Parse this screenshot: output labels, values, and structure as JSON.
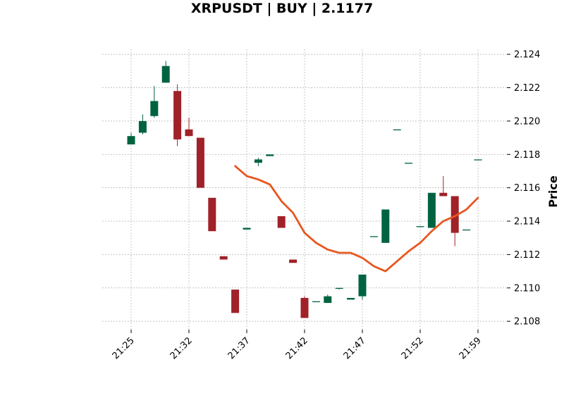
{
  "chart_data": {
    "type": "candlestick",
    "title": "XRPUSDT | BUY | 2.1177",
    "ylabel": "Price",
    "xlabel": "",
    "ylim": [
      2.1075,
      2.1243
    ],
    "y_ticks": [
      "2.108",
      "2.110",
      "2.112",
      "2.114",
      "2.116",
      "2.118",
      "2.120",
      "2.122",
      "2.124"
    ],
    "x_ticks": [
      {
        "label": "21:25",
        "index": 0
      },
      {
        "label": "21:32",
        "index": 5
      },
      {
        "label": "21:37",
        "index": 10
      },
      {
        "label": "21:42",
        "index": 15
      },
      {
        "label": "21:47",
        "index": 20
      },
      {
        "label": "21:52",
        "index": 25
      },
      {
        "label": "21:59",
        "index": 30
      }
    ],
    "colors": {
      "up": "#006340",
      "down": "#a02128",
      "ma": "#e8561e",
      "grid": "#b0b0b0"
    },
    "candles": [
      {
        "o": 2.1186,
        "h": 2.1193,
        "l": 2.1186,
        "c": 2.1191
      },
      {
        "o": 2.1193,
        "h": 2.1204,
        "l": 2.1192,
        "c": 2.12
      },
      {
        "o": 2.1203,
        "h": 2.1221,
        "l": 2.1202,
        "c": 2.1212
      },
      {
        "o": 2.1223,
        "h": 2.1236,
        "l": 2.1223,
        "c": 2.1233
      },
      {
        "o": 2.1218,
        "h": 2.1222,
        "l": 2.1185,
        "c": 2.1189
      },
      {
        "o": 2.1195,
        "h": 2.1202,
        "l": 2.1191,
        "c": 2.1191
      },
      {
        "o": 2.119,
        "h": 2.119,
        "l": 2.116,
        "c": 2.116
      },
      {
        "o": 2.1154,
        "h": 2.1154,
        "l": 2.1134,
        "c": 2.1134
      },
      {
        "o": 2.1119,
        "h": 2.1119,
        "l": 2.1117,
        "c": 2.1117
      },
      {
        "o": 2.1099,
        "h": 2.1099,
        "l": 2.1085,
        "c": 2.1085
      },
      {
        "o": 2.1135,
        "h": 2.1136,
        "l": 2.1135,
        "c": 2.1136
      },
      {
        "o": 2.1175,
        "h": 2.1178,
        "l": 2.1173,
        "c": 2.1177
      },
      {
        "o": 2.1179,
        "h": 2.118,
        "l": 2.1179,
        "c": 2.118
      },
      {
        "o": 2.1143,
        "h": 2.1143,
        "l": 2.1136,
        "c": 2.1136
      },
      {
        "o": 2.1117,
        "h": 2.1117,
        "l": 2.1115,
        "c": 2.1115
      },
      {
        "o": 2.1094,
        "h": 2.1095,
        "l": 2.1082,
        "c": 2.1082
      },
      {
        "o": 2.1092,
        "h": 2.1092,
        "l": 2.1092,
        "c": 2.1092
      },
      {
        "o": 2.1091,
        "h": 2.1096,
        "l": 2.1091,
        "c": 2.1095
      },
      {
        "o": 2.11,
        "h": 2.11,
        "l": 2.1099,
        "c": 2.11
      },
      {
        "o": 2.1093,
        "h": 2.1094,
        "l": 2.1093,
        "c": 2.1094
      },
      {
        "o": 2.1095,
        "h": 2.1108,
        "l": 2.1093,
        "c": 2.1108
      },
      {
        "o": 2.1131,
        "h": 2.1131,
        "l": 2.1131,
        "c": 2.1131
      },
      {
        "o": 2.1127,
        "h": 2.1147,
        "l": 2.1127,
        "c": 2.1147
      },
      {
        "o": 2.1195,
        "h": 2.1195,
        "l": 2.1195,
        "c": 2.1195
      },
      {
        "o": 2.1175,
        "h": 2.1175,
        "l": 2.1175,
        "c": 2.1175
      },
      {
        "o": 2.1137,
        "h": 2.1137,
        "l": 2.1137,
        "c": 2.1137
      },
      {
        "o": 2.1136,
        "h": 2.1157,
        "l": 2.1136,
        "c": 2.1157
      },
      {
        "o": 2.1157,
        "h": 2.1167,
        "l": 2.1155,
        "c": 2.1155
      },
      {
        "o": 2.1155,
        "h": 2.1155,
        "l": 2.1125,
        "c": 2.1133
      },
      {
        "o": 2.1135,
        "h": 2.1135,
        "l": 2.1135,
        "c": 2.1135
      },
      {
        "o": 2.1177,
        "h": 2.1177,
        "l": 2.1177,
        "c": 2.1177
      }
    ],
    "ma_series": {
      "start_index": 9,
      "values": [
        2.1173,
        2.1167,
        2.1165,
        2.1162,
        2.1152,
        2.1145,
        2.1133,
        2.1127,
        2.1123,
        2.1121,
        2.1121,
        2.1118,
        2.1113,
        2.111,
        2.1116,
        2.1122,
        2.1127,
        2.1134,
        2.114,
        2.1143,
        2.1147,
        2.1154
      ]
    }
  }
}
